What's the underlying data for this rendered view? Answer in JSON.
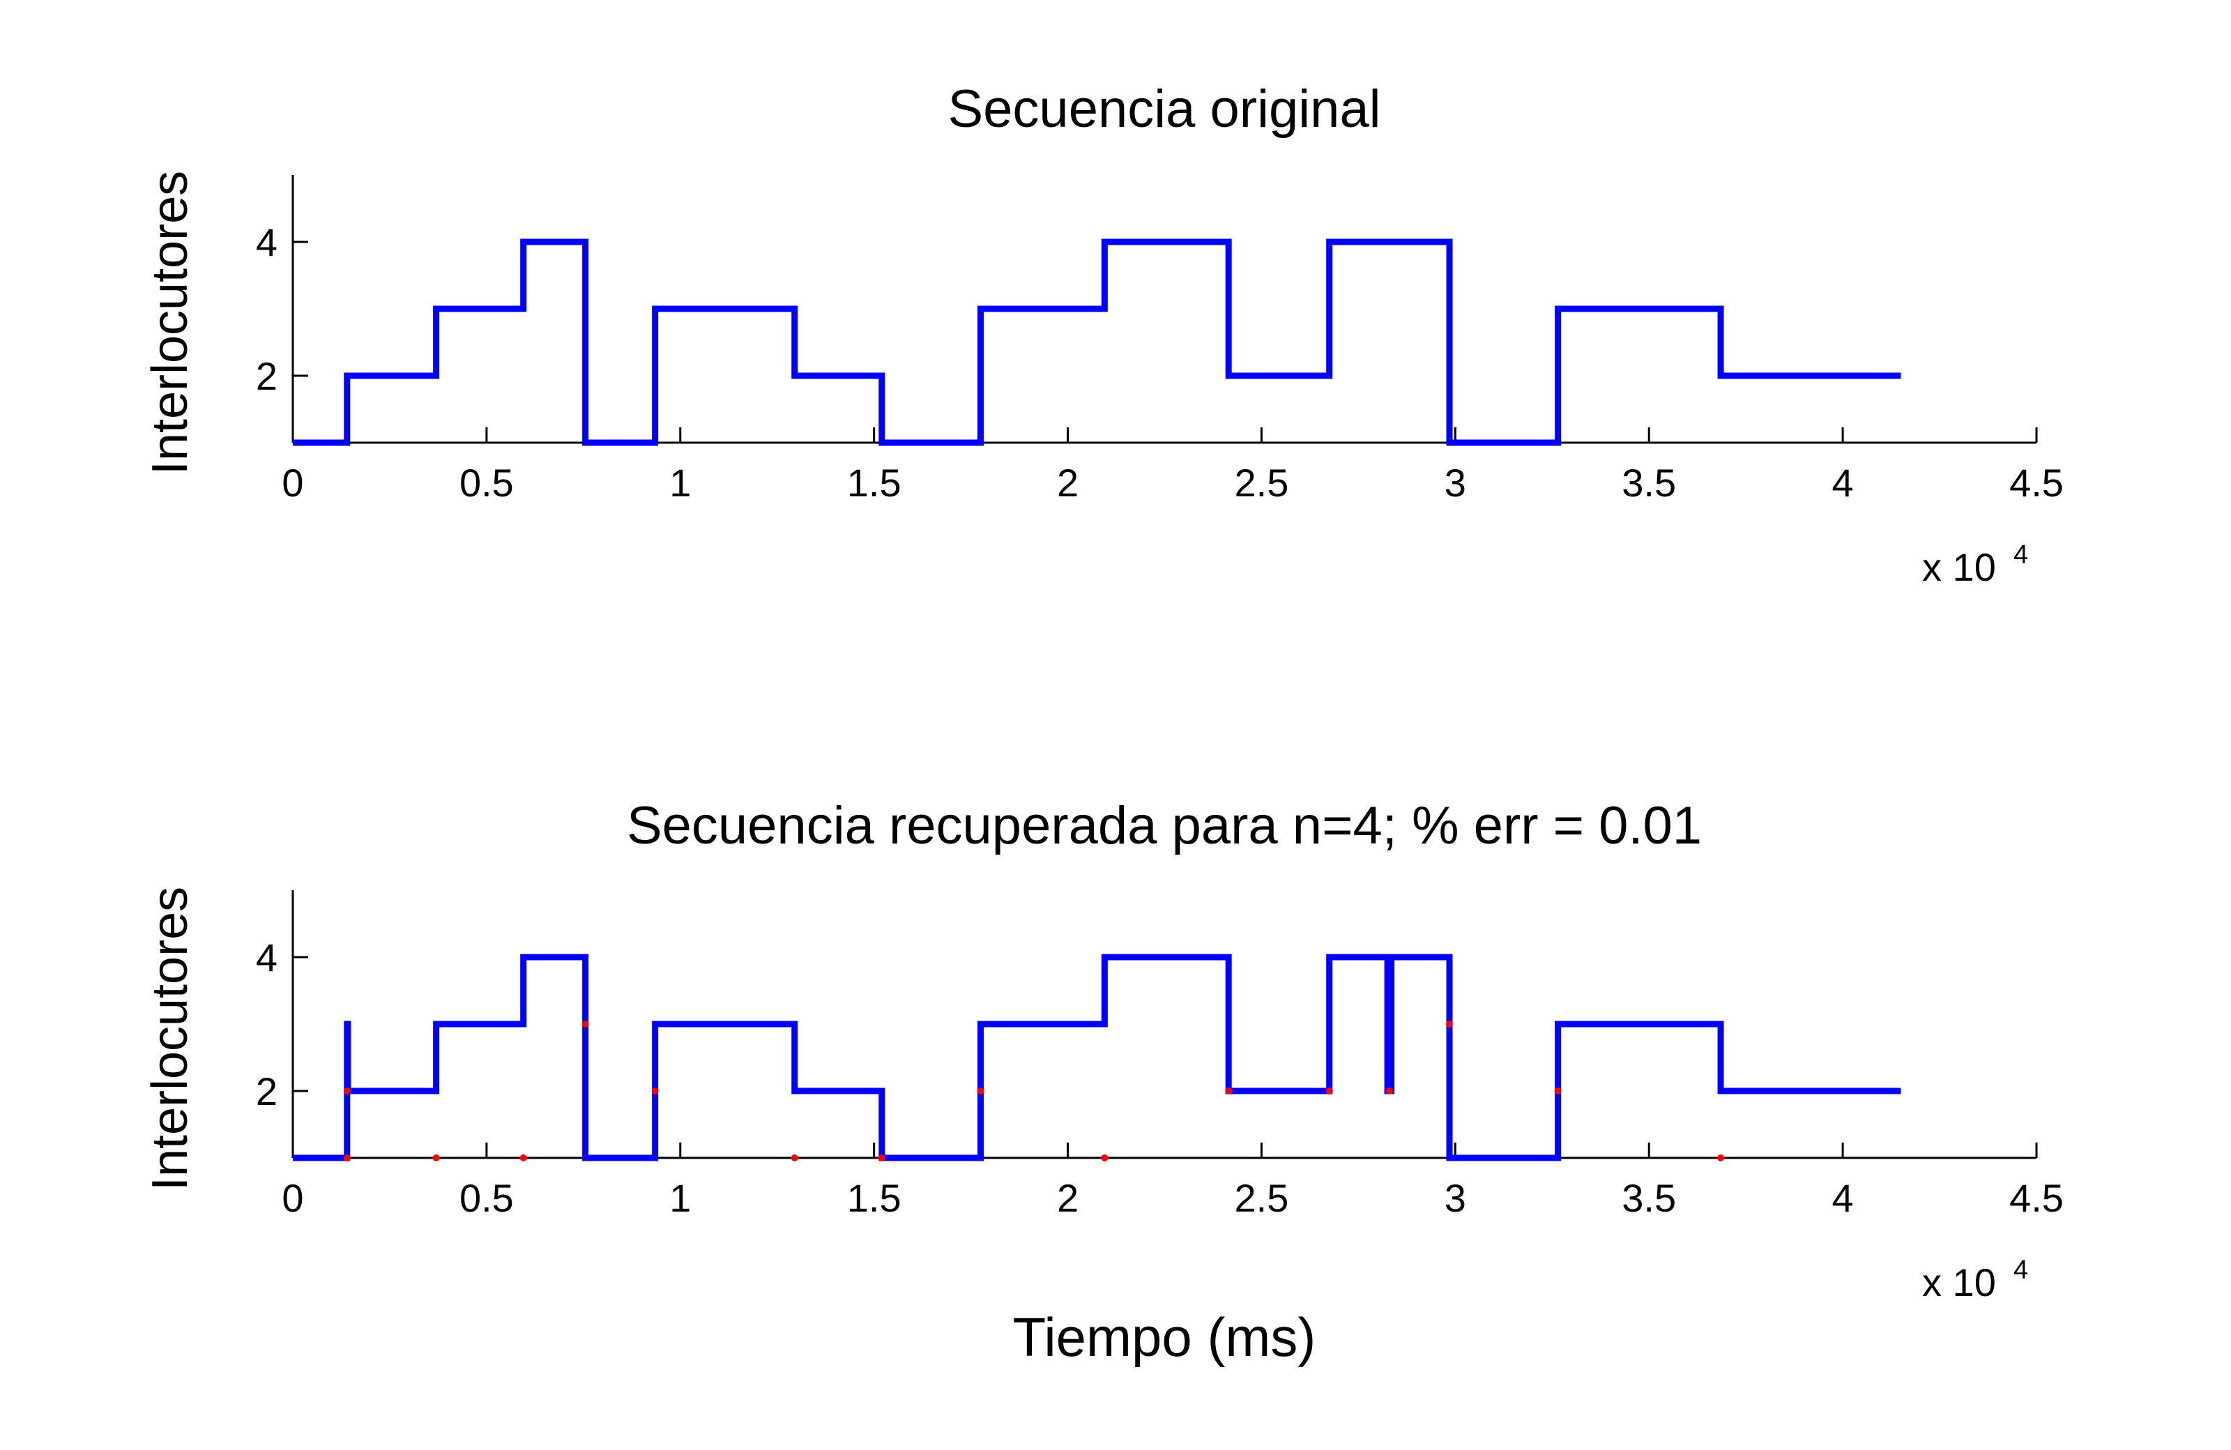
{
  "chart_data": [
    {
      "type": "line",
      "title": "Secuencia original",
      "xlabel": "",
      "ylabel": "Interlocutores",
      "xlim": [
        0,
        45000
      ],
      "ylim": [
        1,
        5
      ],
      "x_ticks": [
        0,
        5000,
        10000,
        15000,
        20000,
        25000,
        30000,
        35000,
        40000,
        45000
      ],
      "x_tick_labels": [
        "0",
        "0.5",
        "1",
        "1.5",
        "2",
        "2.5",
        "3",
        "3.5",
        "4",
        "4.5"
      ],
      "x_multiplier": "x 10",
      "x_multiplier_exp": "4",
      "y_ticks": [
        2,
        4
      ],
      "y_tick_labels": [
        "2",
        "4"
      ],
      "grid": false,
      "series": [
        {
          "color": "#0000ff",
          "step": true,
          "x": [
            0,
            1400,
            3700,
            5950,
            7550,
            9350,
            12950,
            15200,
            17750,
            20950,
            24150,
            26750,
            29850,
            32650,
            36850,
            41500
          ],
          "y": [
            1,
            2,
            3,
            4,
            1,
            3,
            2,
            1,
            3,
            4,
            2,
            4,
            1,
            3,
            2,
            2
          ]
        }
      ]
    },
    {
      "type": "line",
      "title": "Secuencia recuperada para n=4; % err = 0.01",
      "xlabel": "Tiempo (ms)",
      "ylabel": "Interlocutores",
      "xlim": [
        0,
        45000
      ],
      "ylim": [
        1,
        5
      ],
      "x_ticks": [
        0,
        5000,
        10000,
        15000,
        20000,
        25000,
        30000,
        35000,
        40000,
        45000
      ],
      "x_tick_labels": [
        "0",
        "0.5",
        "1",
        "1.5",
        "2",
        "2.5",
        "3",
        "3.5",
        "4",
        "4.5"
      ],
      "x_multiplier": "x 10",
      "x_multiplier_exp": "4",
      "y_ticks": [
        2,
        4
      ],
      "y_tick_labels": [
        "2",
        "4"
      ],
      "grid": false,
      "series": [
        {
          "color": "#0000ff",
          "step": true,
          "x": [
            0,
            1400,
            1420,
            1550,
            3700,
            5950,
            7550,
            9350,
            12950,
            15200,
            17750,
            20950,
            24150,
            26750,
            28250,
            28350,
            29850,
            32650,
            36850,
            41500
          ],
          "y": [
            1,
            3,
            2,
            2,
            3,
            4,
            1,
            3,
            2,
            1,
            3,
            4,
            2,
            4,
            2,
            4,
            1,
            3,
            2,
            2
          ]
        },
        {
          "color": "#ff0000",
          "marker": "dot",
          "x": [
            1400,
            1400,
            3700,
            5950,
            7550,
            9350,
            12950,
            15200,
            17750,
            20950,
            24150,
            26750,
            28300,
            29850,
            32650,
            36850
          ],
          "y": [
            1,
            2,
            1,
            1,
            3,
            2,
            1,
            1,
            2,
            1,
            2,
            2,
            2,
            3,
            2,
            1
          ]
        }
      ]
    }
  ]
}
